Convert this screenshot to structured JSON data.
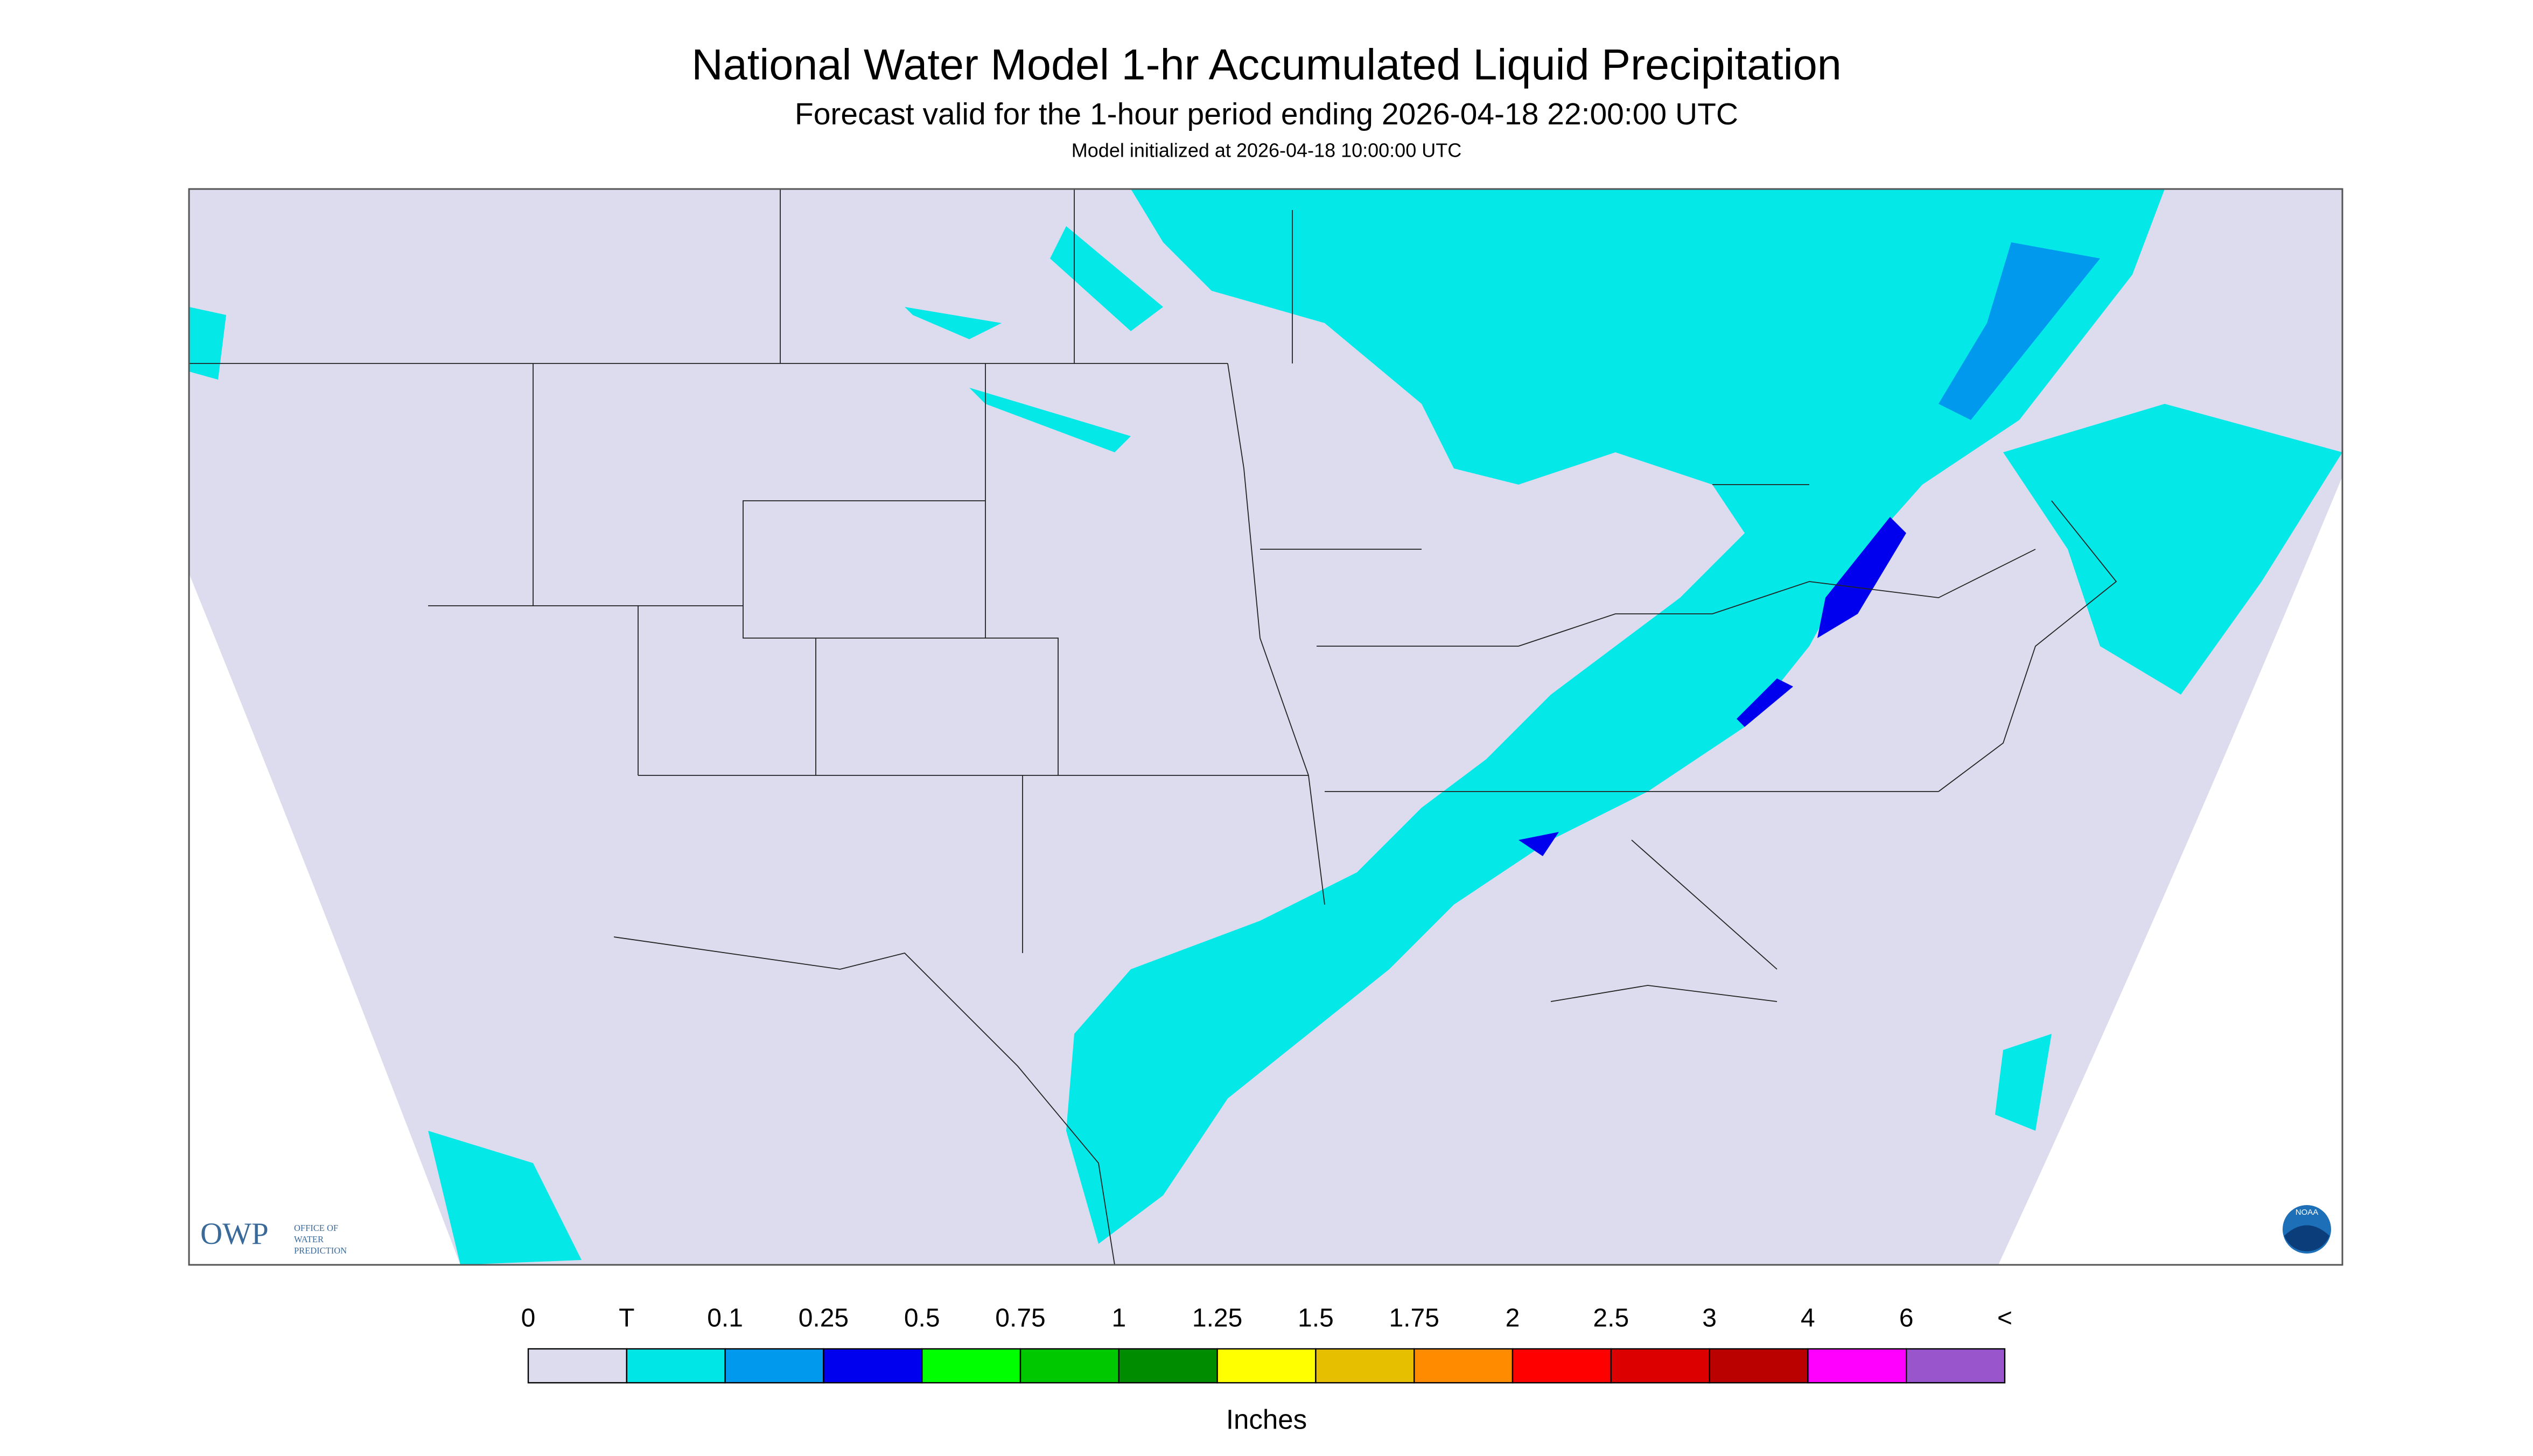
{
  "header": {
    "title": "National Water Model 1-hr Accumulated Liquid Precipitation",
    "subtitle": "Forecast valid for the 1-hour period ending 2026-04-18 22:00:00 UTC",
    "note": "Model initialized at 2026-04-18 10:00:00 UTC"
  },
  "map": {
    "logos": {
      "owp": "OWP",
      "owp_name": [
        "OFFICE OF",
        "WATER",
        "PREDICTION"
      ],
      "noaa": "NOAA"
    }
  },
  "legend": {
    "labels": [
      "0",
      "T",
      "0.1",
      "0.25",
      "0.5",
      "0.75",
      "1",
      "1.25",
      "1.5",
      "1.75",
      "2",
      "2.5",
      "3",
      "4",
      "6",
      "<"
    ],
    "colors": [
      "#dcdcee",
      "#00e5e5",
      "#0099ee",
      "#0000ee",
      "#00ff00",
      "#00c800",
      "#008c00",
      "#ffff00",
      "#e6bf00",
      "#ff8c00",
      "#ff0000",
      "#dd0000",
      "#bb0000",
      "#ff00ff",
      "#9955cc"
    ],
    "unit": "Inches"
  }
}
